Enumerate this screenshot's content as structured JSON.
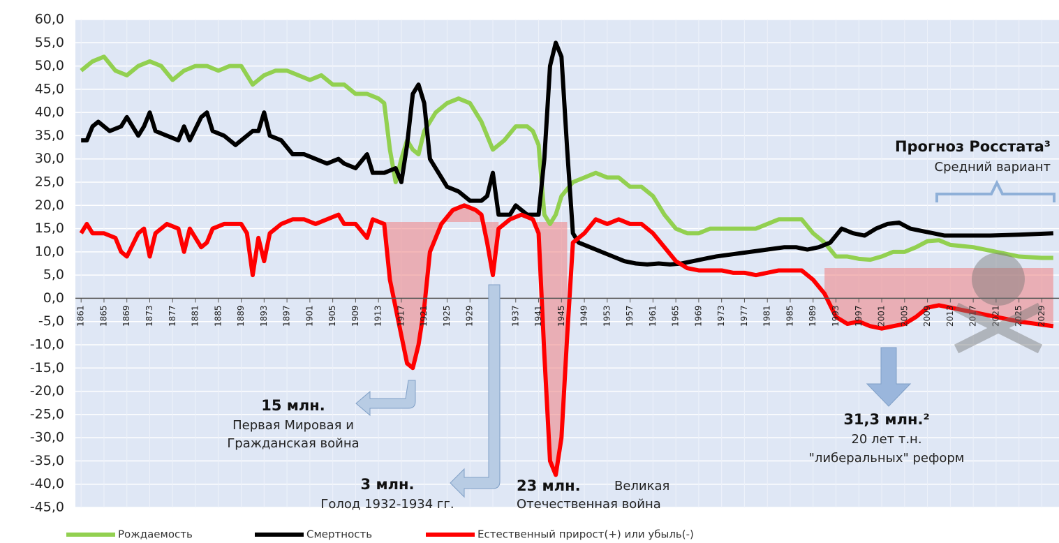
{
  "chart_data": {
    "type": "line",
    "xlim": [
      1860,
      2032
    ],
    "xticks": [
      1861,
      1865,
      1869,
      1873,
      1877,
      1881,
      1885,
      1889,
      1893,
      1897,
      1901,
      1905,
      1909,
      1913,
      1917,
      1921,
      1925,
      1929,
      1933,
      1937,
      1941,
      1945,
      1949,
      1953,
      1957,
      1961,
      1965,
      1969,
      1973,
      1977,
      1981,
      1985,
      1989,
      1993,
      1997,
      2001,
      2005,
      2009,
      2013,
      2017,
      2021,
      2025,
      2029
    ],
    "ylim": [
      -45,
      60
    ],
    "yticks": [
      {
        "value": 60,
        "label": "60,0"
      },
      {
        "value": 55,
        "label": "55,0"
      },
      {
        "value": 50,
        "label": "50,0"
      },
      {
        "value": 45,
        "label": "45,0"
      },
      {
        "value": 40,
        "label": "40,0"
      },
      {
        "value": 35,
        "label": "35,0"
      },
      {
        "value": 30,
        "label": "30,0"
      },
      {
        "value": 25,
        "label": "25,0"
      },
      {
        "value": 20,
        "label": "20,0"
      },
      {
        "value": 15,
        "label": "15,0"
      },
      {
        "value": 10,
        "label": "10,0"
      },
      {
        "value": 5,
        "label": "5,0"
      },
      {
        "value": 0,
        "label": "0,0"
      },
      {
        "value": -5,
        "label": "-5,0"
      },
      {
        "value": -10,
        "label": "-10,0"
      },
      {
        "value": -15,
        "label": "-15,0"
      },
      {
        "value": -20,
        "label": "-20,0"
      },
      {
        "value": -25,
        "label": "-25,0"
      },
      {
        "value": -30,
        "label": "-30,0"
      },
      {
        "value": -35,
        "label": "-35,0"
      },
      {
        "value": -40,
        "label": "-40,0"
      },
      {
        "value": -45,
        "label": "-45,0"
      }
    ],
    "grid": true,
    "series": [
      {
        "name": "Рождаемость",
        "color": "#92d050",
        "x": [
          1861,
          1863,
          1865,
          1867,
          1869,
          1871,
          1873,
          1875,
          1877,
          1879,
          1881,
          1883,
          1885,
          1887,
          1889,
          1891,
          1893,
          1895,
          1897,
          1899,
          1901,
          1903,
          1905,
          1907,
          1909,
          1911,
          1913,
          1914,
          1915,
          1916,
          1917,
          1918,
          1919,
          1920,
          1921,
          1923,
          1925,
          1927,
          1929,
          1931,
          1933,
          1935,
          1937,
          1939,
          1940,
          1941,
          1942,
          1943,
          1944,
          1945,
          1947,
          1949,
          1951,
          1953,
          1955,
          1957,
          1959,
          1961,
          1963,
          1965,
          1967,
          1969,
          1971,
          1973,
          1975,
          1977,
          1979,
          1981,
          1983,
          1985,
          1987,
          1989,
          1991,
          1993,
          1995,
          1997,
          1999,
          2001,
          2003,
          2005,
          2007,
          2009,
          2011,
          2013,
          2017,
          2021,
          2025,
          2029,
          2031
        ],
        "values": [
          49,
          51,
          52,
          49,
          48,
          50,
          51,
          50,
          47,
          49,
          50,
          50,
          49,
          50,
          50,
          46,
          48,
          49,
          49,
          48,
          47,
          48,
          46,
          46,
          44,
          44,
          43,
          42,
          32,
          25,
          30,
          34,
          32,
          31,
          36,
          40,
          42,
          43,
          42,
          38,
          32,
          34,
          37,
          37,
          36,
          33,
          18,
          16,
          18,
          22,
          25,
          26,
          27,
          26,
          26,
          24,
          24,
          22,
          18,
          15,
          14,
          14,
          15,
          15,
          15,
          15,
          15,
          16,
          17,
          17,
          17,
          14,
          12,
          9,
          9,
          8.5,
          8.3,
          9,
          10,
          10,
          11,
          12.3,
          12.5,
          11.5,
          11,
          10,
          9,
          8.7,
          8.7
        ]
      },
      {
        "name": "Смертность",
        "color": "#000000",
        "x": [
          1861,
          1862,
          1863,
          1864,
          1866,
          1868,
          1869,
          1871,
          1872,
          1873,
          1874,
          1876,
          1878,
          1879,
          1880,
          1882,
          1883,
          1884,
          1886,
          1888,
          1889,
          1891,
          1892,
          1893,
          1894,
          1896,
          1898,
          1900,
          1902,
          1904,
          1906,
          1907,
          1909,
          1911,
          1912,
          1914,
          1916,
          1917,
          1918,
          1919,
          1920,
          1921,
          1922,
          1923,
          1925,
          1927,
          1929,
          1931,
          1932,
          1933,
          1934,
          1936,
          1937,
          1939,
          1941,
          1942,
          1943,
          1944,
          1945,
          1946,
          1947,
          1948,
          1950,
          1952,
          1954,
          1956,
          1958,
          1960,
          1962,
          1964,
          1966,
          1968,
          1970,
          1972,
          1975,
          1978,
          1981,
          1984,
          1986,
          1988,
          1990,
          1992,
          1994,
          1996,
          1998,
          2000,
          2002,
          2004,
          2006,
          2008,
          2010,
          2012,
          2020,
          2025,
          2031
        ],
        "values": [
          34,
          34,
          37,
          38,
          36,
          37,
          39,
          35,
          37,
          40,
          36,
          35,
          34,
          37,
          34,
          39,
          40,
          36,
          35,
          33,
          34,
          36,
          36,
          40,
          35,
          34,
          31,
          31,
          30,
          29,
          30,
          29,
          28,
          31,
          27,
          27,
          28,
          25,
          33,
          44,
          46,
          42,
          30,
          28,
          24,
          23,
          21,
          21,
          22,
          27,
          18,
          18,
          20,
          18,
          18,
          30,
          50,
          55,
          52,
          32,
          14,
          12,
          11,
          10,
          9,
          8,
          7.5,
          7.3,
          7.5,
          7.3,
          7.5,
          8,
          8.5,
          9,
          9.5,
          10,
          10.5,
          11,
          11,
          10.5,
          11,
          12,
          15,
          14,
          13.5,
          15,
          16,
          16.3,
          15,
          14.5,
          14,
          13.5,
          13.5,
          13.7,
          14
        ]
      },
      {
        "name": "Естественный прирост(+) или убыль(-)",
        "color": "#ff0000",
        "x": [
          1861,
          1862,
          1863,
          1865,
          1867,
          1868,
          1869,
          1871,
          1872,
          1873,
          1874,
          1876,
          1878,
          1879,
          1880,
          1882,
          1883,
          1884,
          1886,
          1888,
          1889,
          1890,
          1891,
          1892,
          1893,
          1894,
          1896,
          1898,
          1900,
          1902,
          1904,
          1906,
          1907,
          1909,
          1911,
          1912,
          1914,
          1915,
          1916,
          1917,
          1918,
          1919,
          1920,
          1921,
          1922,
          1924,
          1926,
          1928,
          1930,
          1931,
          1932,
          1933,
          1934,
          1936,
          1938,
          1940,
          1941,
          1942,
          1943,
          1944,
          1945,
          1946,
          1947,
          1949,
          1951,
          1953,
          1955,
          1957,
          1959,
          1961,
          1963,
          1965,
          1967,
          1969,
          1971,
          1973,
          1975,
          1977,
          1979,
          1981,
          1983,
          1985,
          1987,
          1989,
          1991,
          1993,
          1995,
          1997,
          1999,
          2001,
          2003,
          2005,
          2007,
          2009,
          2011,
          2013,
          2017,
          2021,
          2025,
          2031
        ],
        "values": [
          14,
          16,
          14,
          14,
          13,
          10,
          9,
          14,
          15,
          9,
          14,
          16,
          15,
          10,
          15,
          11,
          12,
          15,
          16,
          16,
          16,
          14,
          5,
          13,
          8,
          14,
          16,
          17,
          17,
          16,
          17,
          18,
          16,
          16,
          13,
          17,
          16,
          4,
          -2,
          -8,
          -14,
          -15,
          -10,
          -2,
          10,
          16,
          19,
          20,
          19,
          18,
          12,
          5,
          15,
          17,
          18,
          17,
          14,
          -12,
          -35,
          -38,
          -30,
          -8,
          12,
          14,
          17,
          16,
          17,
          16,
          16,
          14,
          11,
          8,
          6.5,
          6,
          6,
          6,
          5.5,
          5.5,
          5,
          5.5,
          6,
          6,
          6,
          4,
          1,
          -4,
          -5.5,
          -5,
          -6,
          -6.5,
          -6,
          -5.5,
          -4,
          -2,
          -1.5,
          -2,
          -3,
          -4,
          -5,
          -6
        ]
      }
    ],
    "annotations": [
      "Прогноз Росстата³",
      "Средний вариант",
      "15 млн.",
      "Первая Мировая и",
      "Гражданская война",
      "3 млн.",
      "Голод 1932-1934 гг.",
      "23 млн.",
      "Великая",
      "Отечественная  война",
      "31,3 млн.²",
      "20 лет т.н.",
      "\"либеральных\"  реформ"
    ]
  }
}
